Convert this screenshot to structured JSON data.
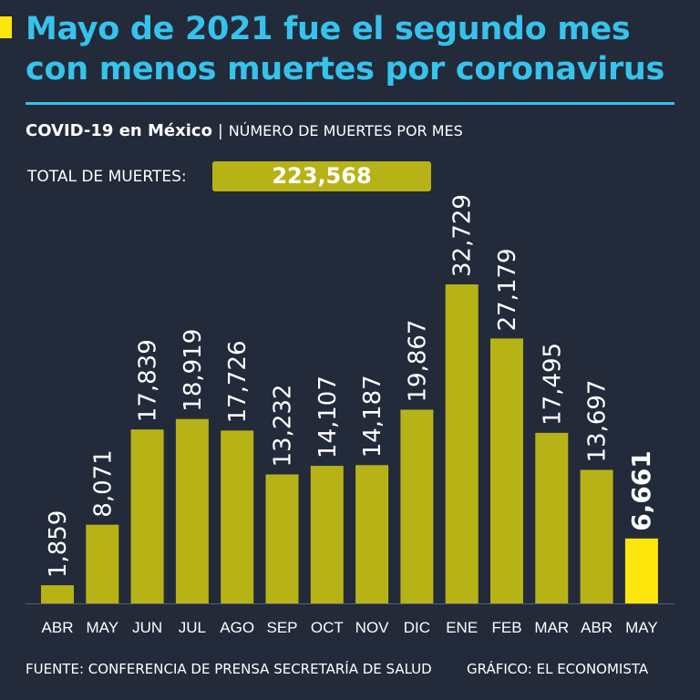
{
  "colors": {
    "background": "#232a3a",
    "headline": "#35c3ec",
    "bar": "#b7b317",
    "highlight": "#fde60b",
    "text": "#ffffff"
  },
  "header": {
    "headline_line1": "Mayo de 2021 fue el segundo mes",
    "headline_line2": "con menos muertes por coronavirus"
  },
  "subtitle": {
    "bold": "COVID-19 en México",
    "separator": "|",
    "rest": "NÚMERO DE MUERTES POR MES"
  },
  "total": {
    "label": "TOTAL DE MUERTES:",
    "value": "223,568"
  },
  "chart_data": {
    "type": "bar",
    "categories": [
      "ABR",
      "MAY",
      "JUN",
      "JUL",
      "AGO",
      "SEP",
      "OCT",
      "NOV",
      "DIC",
      "ENE",
      "FEB",
      "MAR",
      "ABR",
      "MAY"
    ],
    "values": [
      1859,
      8071,
      17839,
      18919,
      17726,
      13232,
      14107,
      14187,
      19867,
      32729,
      27179,
      17495,
      13697,
      6661
    ],
    "value_labels": [
      "1,859",
      "8,071",
      "17,839",
      "18,919",
      "17,726",
      "13,232",
      "14,107",
      "14,187",
      "19,867",
      "32,729",
      "27,179",
      "17,495",
      "13,697",
      "6,661"
    ],
    "highlight_index": 13,
    "title": "COVID-19 en México | NÚMERO DE MUERTES POR MES",
    "xlabel": "",
    "ylabel": "",
    "ylim": [
      0,
      32729
    ],
    "grid": false
  },
  "footer": {
    "source": "FUENTE: CONFERENCIA DE PRENSA SECRETARÍA DE SALUD",
    "credit": "GRÁFICO: EL ECONOMISTA"
  }
}
